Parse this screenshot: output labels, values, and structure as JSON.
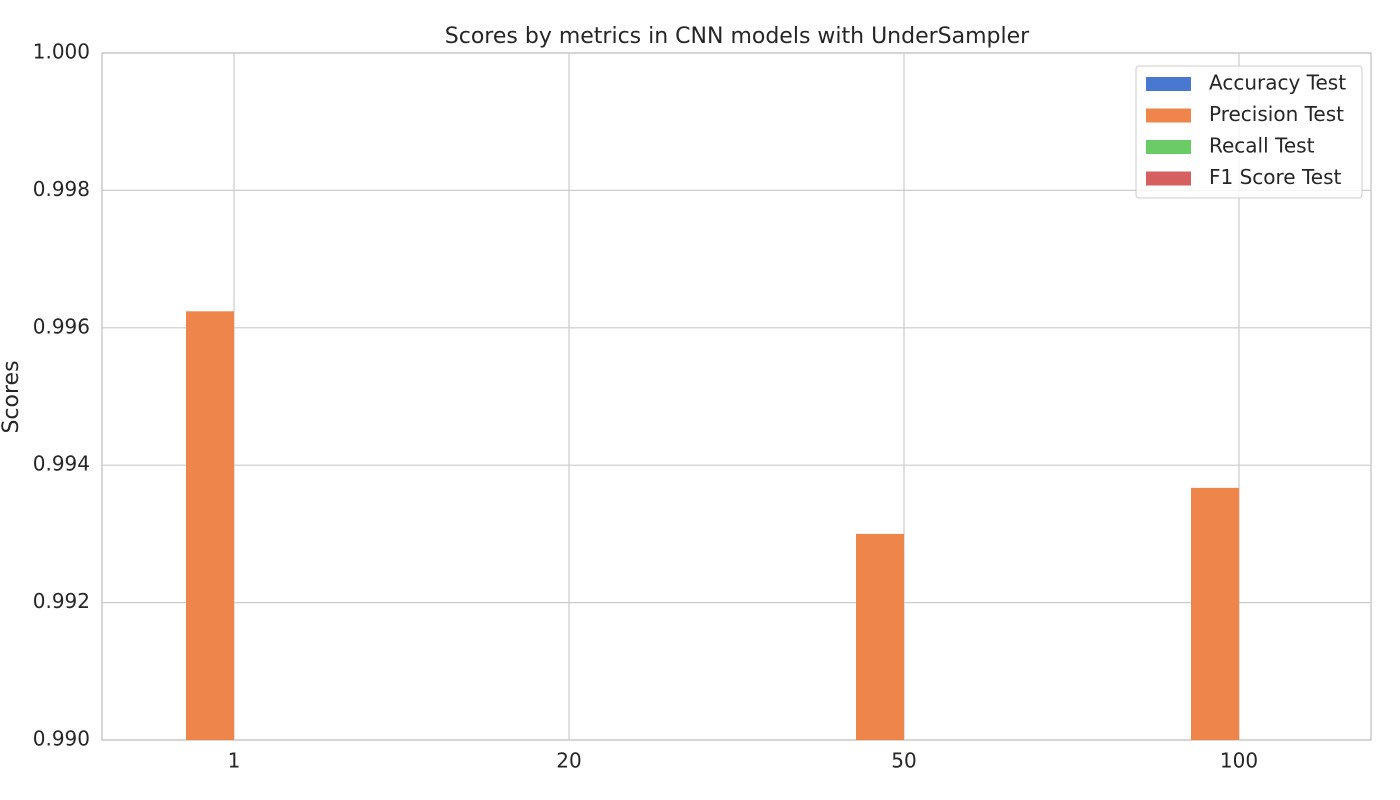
{
  "chart_data": {
    "type": "bar",
    "title": "Scores by metrics in CNN models with UnderSampler",
    "y_label": "Scores",
    "categories": [
      "1",
      "20",
      "50",
      "100"
    ],
    "series": [
      {
        "name": "Accuracy Test",
        "color": "#4878d0",
        "values": [
          null,
          null,
          null,
          null
        ]
      },
      {
        "name": "Precision Test",
        "color": "#ee854a",
        "values": [
          0.99624,
          null,
          0.993,
          0.99367
        ]
      },
      {
        "name": "Recall Test",
        "color": "#6acc64",
        "values": [
          null,
          null,
          null,
          null
        ]
      },
      {
        "name": "F1 Score Test",
        "color": "#d65f5f",
        "values": [
          null,
          null,
          null,
          null
        ]
      }
    ],
    "ylim": [
      0.99,
      1.0
    ],
    "yticks": [
      {
        "value": 0.99,
        "label": "0.990"
      },
      {
        "value": 0.992,
        "label": "0.992"
      },
      {
        "value": 0.994,
        "label": "0.994"
      },
      {
        "value": 0.996,
        "label": "0.996"
      },
      {
        "value": 0.998,
        "label": "0.998"
      },
      {
        "value": 1.0,
        "label": "1.000"
      }
    ],
    "grid": true,
    "legend": "upper right"
  }
}
